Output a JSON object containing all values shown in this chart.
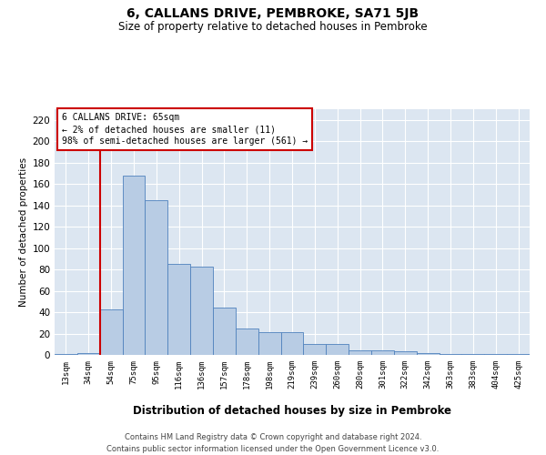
{
  "title": "6, CALLANS DRIVE, PEMBROKE, SA71 5JB",
  "subtitle": "Size of property relative to detached houses in Pembroke",
  "xlabel": "Distribution of detached houses by size in Pembroke",
  "ylabel": "Number of detached properties",
  "footer_line1": "Contains HM Land Registry data © Crown copyright and database right 2024.",
  "footer_line2": "Contains public sector information licensed under the Open Government Licence v3.0.",
  "annotation_title": "6 CALLANS DRIVE: 65sqm",
  "annotation_line1": "← 2% of detached houses are smaller (11)",
  "annotation_line2": "98% of semi-detached houses are larger (561) →",
  "bar_color": "#b8cce4",
  "bar_edge_color": "#4f81bd",
  "vline_color": "#cc0000",
  "annotation_box_color": "#cc0000",
  "background_color": "#dce6f1",
  "categories": [
    "13sqm",
    "34sqm",
    "54sqm",
    "75sqm",
    "95sqm",
    "116sqm",
    "136sqm",
    "157sqm",
    "178sqm",
    "198sqm",
    "219sqm",
    "239sqm",
    "260sqm",
    "280sqm",
    "301sqm",
    "322sqm",
    "342sqm",
    "363sqm",
    "383sqm",
    "404sqm",
    "425sqm"
  ],
  "values": [
    1,
    2,
    43,
    168,
    145,
    85,
    83,
    44,
    25,
    21,
    21,
    10,
    10,
    4,
    4,
    3,
    2,
    1,
    1,
    1,
    1
  ],
  "ylim": [
    0,
    230
  ],
  "yticks": [
    0,
    20,
    40,
    60,
    80,
    100,
    120,
    140,
    160,
    180,
    200,
    220
  ]
}
